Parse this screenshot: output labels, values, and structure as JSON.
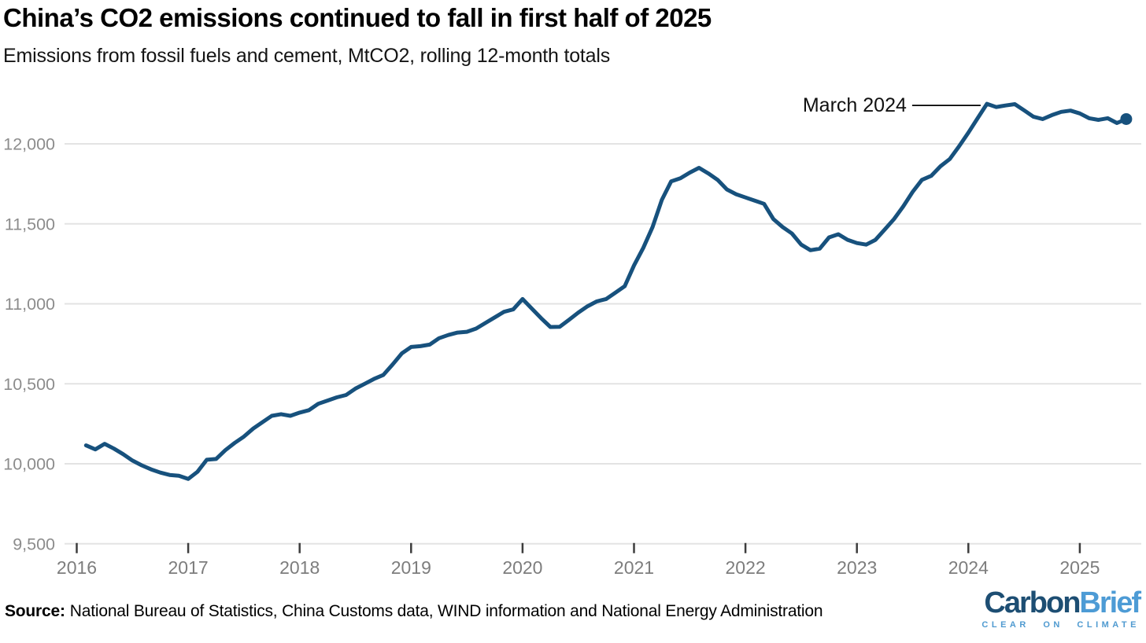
{
  "header": {
    "title": "China’s CO2 emissions continued to fall in first half of 2025",
    "subtitle": "Emissions from fossil fuels and cement, MtCO2, rolling 12-month totals"
  },
  "chart_data": {
    "type": "line",
    "title": "China’s CO2 emissions continued to fall in first half of 2025",
    "ylabel": "MtCO2, rolling 12-month totals",
    "xlabel": "",
    "ylim": [
      9500,
      12260
    ],
    "grid": "horizontal",
    "legend_position": "none",
    "line_color": "#17517d",
    "grid_color": "#e3e3e3",
    "axis_label_color": "#8c8c8c",
    "tick_mark_color": "#3d3d3d",
    "y_ticks": [
      {
        "value": 9500,
        "label": "9,500"
      },
      {
        "value": 10000,
        "label": "10,000"
      },
      {
        "value": 10500,
        "label": "10,500"
      },
      {
        "value": 11000,
        "label": "11,000"
      },
      {
        "value": 11500,
        "label": "11,500"
      },
      {
        "value": 12000,
        "label": "12,000"
      }
    ],
    "x_ticks": [
      "2016",
      "2017",
      "2018",
      "2019",
      "2020",
      "2021",
      "2022",
      "2023",
      "2024",
      "2025"
    ],
    "series": [
      {
        "name": "CO2 emissions from fossil fuels and cement (MtCO2, rolling 12-month total)",
        "points": [
          [
            2016,
            2,
            10115
          ],
          [
            2016,
            3,
            10090
          ],
          [
            2016,
            4,
            10125
          ],
          [
            2016,
            5,
            10095
          ],
          [
            2016,
            6,
            10060
          ],
          [
            2016,
            7,
            10020
          ],
          [
            2016,
            8,
            9990
          ],
          [
            2016,
            9,
            9965
          ],
          [
            2016,
            10,
            9945
          ],
          [
            2016,
            11,
            9930
          ],
          [
            2016,
            12,
            9925
          ],
          [
            2017,
            1,
            9905
          ],
          [
            2017,
            2,
            9950
          ],
          [
            2017,
            3,
            10025
          ],
          [
            2017,
            4,
            10030
          ],
          [
            2017,
            5,
            10085
          ],
          [
            2017,
            6,
            10130
          ],
          [
            2017,
            7,
            10170
          ],
          [
            2017,
            8,
            10220
          ],
          [
            2017,
            9,
            10260
          ],
          [
            2017,
            10,
            10300
          ],
          [
            2017,
            11,
            10310
          ],
          [
            2017,
            12,
            10300
          ],
          [
            2018,
            1,
            10320
          ],
          [
            2018,
            2,
            10335
          ],
          [
            2018,
            3,
            10375
          ],
          [
            2018,
            4,
            10395
          ],
          [
            2018,
            5,
            10415
          ],
          [
            2018,
            6,
            10430
          ],
          [
            2018,
            7,
            10470
          ],
          [
            2018,
            8,
            10500
          ],
          [
            2018,
            9,
            10530
          ],
          [
            2018,
            10,
            10555
          ],
          [
            2018,
            11,
            10620
          ],
          [
            2018,
            12,
            10690
          ],
          [
            2019,
            1,
            10730
          ],
          [
            2019,
            2,
            10735
          ],
          [
            2019,
            3,
            10745
          ],
          [
            2019,
            4,
            10785
          ],
          [
            2019,
            5,
            10805
          ],
          [
            2019,
            6,
            10820
          ],
          [
            2019,
            7,
            10825
          ],
          [
            2019,
            8,
            10845
          ],
          [
            2019,
            9,
            10880
          ],
          [
            2019,
            10,
            10915
          ],
          [
            2019,
            11,
            10950
          ],
          [
            2019,
            12,
            10965
          ],
          [
            2020,
            1,
            11030
          ],
          [
            2020,
            2,
            10970
          ],
          [
            2020,
            3,
            10910
          ],
          [
            2020,
            4,
            10855
          ],
          [
            2020,
            5,
            10856
          ],
          [
            2020,
            6,
            10900
          ],
          [
            2020,
            7,
            10945
          ],
          [
            2020,
            8,
            10985
          ],
          [
            2020,
            9,
            11015
          ],
          [
            2020,
            10,
            11030
          ],
          [
            2020,
            11,
            11070
          ],
          [
            2020,
            12,
            11110
          ],
          [
            2021,
            1,
            11240
          ],
          [
            2021,
            2,
            11350
          ],
          [
            2021,
            3,
            11480
          ],
          [
            2021,
            4,
            11650
          ],
          [
            2021,
            5,
            11765
          ],
          [
            2021,
            6,
            11785
          ],
          [
            2021,
            7,
            11820
          ],
          [
            2021,
            8,
            11850
          ],
          [
            2021,
            9,
            11815
          ],
          [
            2021,
            10,
            11775
          ],
          [
            2021,
            11,
            11715
          ],
          [
            2021,
            12,
            11685
          ],
          [
            2022,
            1,
            11665
          ],
          [
            2022,
            2,
            11645
          ],
          [
            2022,
            3,
            11625
          ],
          [
            2022,
            4,
            11530
          ],
          [
            2022,
            5,
            11480
          ],
          [
            2022,
            6,
            11440
          ],
          [
            2022,
            7,
            11370
          ],
          [
            2022,
            8,
            11335
          ],
          [
            2022,
            9,
            11345
          ],
          [
            2022,
            10,
            11415
          ],
          [
            2022,
            11,
            11435
          ],
          [
            2022,
            12,
            11400
          ],
          [
            2023,
            1,
            11380
          ],
          [
            2023,
            2,
            11370
          ],
          [
            2023,
            3,
            11400
          ],
          [
            2023,
            4,
            11465
          ],
          [
            2023,
            5,
            11530
          ],
          [
            2023,
            6,
            11610
          ],
          [
            2023,
            7,
            11700
          ],
          [
            2023,
            8,
            11775
          ],
          [
            2023,
            9,
            11800
          ],
          [
            2023,
            10,
            11860
          ],
          [
            2023,
            11,
            11905
          ],
          [
            2023,
            12,
            11985
          ],
          [
            2024,
            1,
            12070
          ],
          [
            2024,
            2,
            12160
          ],
          [
            2024,
            3,
            12250
          ],
          [
            2024,
            4,
            12230
          ],
          [
            2024,
            5,
            12240
          ],
          [
            2024,
            6,
            12248
          ],
          [
            2024,
            7,
            12210
          ],
          [
            2024,
            8,
            12170
          ],
          [
            2024,
            9,
            12155
          ],
          [
            2024,
            10,
            12180
          ],
          [
            2024,
            11,
            12200
          ],
          [
            2024,
            12,
            12208
          ],
          [
            2025,
            1,
            12190
          ],
          [
            2025,
            2,
            12160
          ],
          [
            2025,
            3,
            12150
          ],
          [
            2025,
            4,
            12160
          ],
          [
            2025,
            5,
            12130
          ],
          [
            2025,
            6,
            12155
          ]
        ]
      }
    ],
    "annotation": {
      "label": "March 2024",
      "year": 2024,
      "month": 3
    },
    "end_marker": true
  },
  "footer": {
    "source_label": "Source:",
    "source_text": "National Bureau of Statistics, China Customs data, WIND information and National Energy Administration",
    "logo": {
      "brand_dark": "Carbon",
      "brand_light": "Brief",
      "tagline": "CLEAR ON CLIMATE",
      "color_dark": "#1d4e73",
      "color_light": "#4d9bd5"
    }
  }
}
